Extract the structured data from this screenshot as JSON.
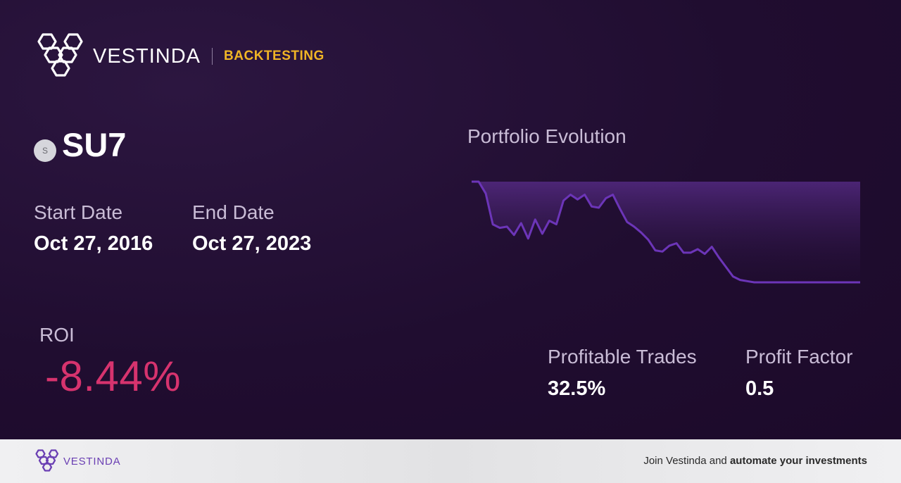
{
  "header": {
    "brand_name": "VESTINDA",
    "section_tag": "BACKTESTING",
    "logo_icon": "hexagon-cluster-icon",
    "tag_color": "#f0b525"
  },
  "ticker": {
    "badge": "S",
    "symbol": "SU7"
  },
  "dates": {
    "start_label": "Start Date",
    "start_value": "Oct 27, 2016",
    "end_label": "End Date",
    "end_value": "Oct 27, 2023"
  },
  "roi": {
    "label": "ROI",
    "value": "-8.44%",
    "color": "#d7336e"
  },
  "chart": {
    "title": "Portfolio Evolution",
    "line_color": "#6c35b8"
  },
  "chart_data": {
    "type": "area",
    "values": [
      100,
      100,
      99.0,
      96.4,
      96.1,
      96.2,
      95.5,
      96.5,
      95.2,
      96.8,
      95.6,
      96.7,
      96.4,
      98.4,
      98.9,
      98.5,
      98.9,
      97.9,
      97.8,
      98.6,
      98.9,
      97.7,
      96.6,
      96.2,
      95.7,
      95.1,
      94.2,
      94.1,
      94.6,
      94.8,
      94.0,
      94.0,
      94.3,
      93.9,
      94.5,
      93.6,
      92.8,
      92.0,
      91.7,
      91.6,
      91.5,
      91.5,
      91.5,
      91.5,
      91.5,
      91.5,
      91.5,
      91.5,
      91.5,
      91.5,
      91.5,
      91.5,
      91.5,
      91.5,
      91.5,
      91.5
    ],
    "ylim": [
      91.56,
      100
    ],
    "grid": false,
    "legend": "none"
  },
  "stats": {
    "profitable_label": "Profitable Trades",
    "profitable_value": "32.5%",
    "factor_label": "Profit Factor",
    "factor_value": "0.5"
  },
  "footer": {
    "brand_name": "VESTINDA",
    "cta_prefix": "Join Vestinda and ",
    "cta_bold": "automate your investments",
    "brand_color": "#6a3fb3"
  }
}
